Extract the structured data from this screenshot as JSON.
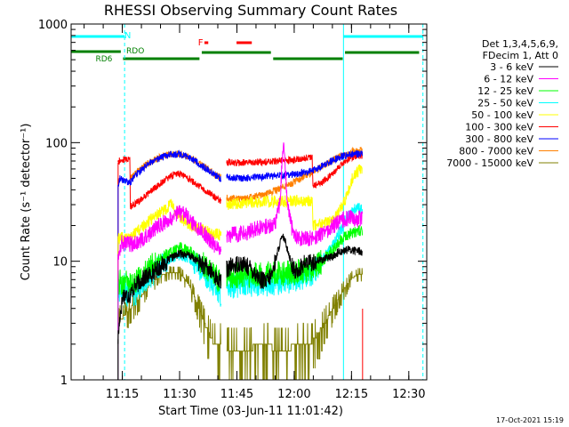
{
  "chart_data": {
    "type": "line",
    "title": "RHESSI Observing Summary Count Rates",
    "xlabel": "Start Time (03-Jun-11 11:01:42)",
    "ylabel": "Count Rate (s⁻¹ detector⁻¹)",
    "y_scale": "log",
    "ylim": [
      1,
      1000
    ],
    "xlim_minutes_from_start": [
      -0.1,
      93
    ],
    "y_ticks": [
      1,
      10,
      100,
      1000
    ],
    "y_tick_labels": [
      "1",
      "10",
      "100",
      "1000"
    ],
    "x_tick_labels": [
      "11:15",
      "11:30",
      "11:45",
      "12:00",
      "12:15",
      "12:30"
    ],
    "x_tick_minutes": [
      13.3,
      28.3,
      43.3,
      58.3,
      73.3,
      88.3
    ],
    "timestamp": "17-Oct-2021 15:19",
    "legend_header": [
      "Det 1,3,4,5,6,9,",
      "FDecim 1, Att 0"
    ],
    "legend_position": "right",
    "data_start": 12.2,
    "data_end": 76.2,
    "gap_start": 39.2,
    "gap_end": 40.6,
    "series": [
      {
        "name": "3 - 6 keV",
        "color": "#000000",
        "points": [
          [
            12.2,
            2.2
          ],
          [
            12.7,
            3.5
          ],
          [
            13.5,
            5.2
          ],
          [
            15.4,
            5.2
          ],
          [
            16.0,
            5.8
          ],
          [
            18.0,
            6.8
          ],
          [
            22.0,
            8.4
          ],
          [
            26.0,
            10.6
          ],
          [
            28.5,
            11.7
          ],
          [
            31.0,
            11.1
          ],
          [
            34.0,
            9.5
          ],
          [
            36.5,
            8.2
          ],
          [
            38.4,
            6.9
          ],
          [
            39.3,
            6.6
          ],
          [
            40.6,
            8.6
          ],
          [
            44.0,
            9.7
          ],
          [
            47.0,
            8.7
          ],
          [
            49.5,
            7.0
          ],
          [
            51.0,
            6.6
          ],
          [
            52.5,
            7.8
          ],
          [
            53.5,
            10.6
          ],
          [
            54.8,
            15.0
          ],
          [
            55.5,
            16.0
          ],
          [
            56.5,
            13.0
          ],
          [
            57.5,
            9.7
          ],
          [
            58.5,
            8.0
          ],
          [
            61.0,
            9.6
          ],
          [
            63.0,
            9.8
          ],
          [
            65.5,
            10.3
          ],
          [
            68.5,
            11.0
          ],
          [
            70.0,
            12.0
          ],
          [
            72.5,
            12.5
          ],
          [
            75.0,
            12.3
          ],
          [
            76.2,
            12.0
          ]
        ]
      },
      {
        "name": "6 - 12 keV",
        "color": "#ff00ff",
        "points": [
          [
            12.2,
            11.5
          ],
          [
            13.0,
            14.2
          ],
          [
            15.4,
            14.0
          ],
          [
            16.5,
            14.0
          ],
          [
            19.0,
            15.5
          ],
          [
            22.0,
            19.0
          ],
          [
            25.0,
            22.0
          ],
          [
            27.5,
            25.0
          ],
          [
            29.0,
            26.0
          ],
          [
            31.0,
            22.5
          ],
          [
            34.0,
            18.0
          ],
          [
            36.5,
            15.0
          ],
          [
            38.5,
            12.5
          ],
          [
            39.3,
            12.0
          ],
          [
            40.6,
            16.5
          ],
          [
            43.5,
            17.0
          ],
          [
            46.0,
            17.5
          ],
          [
            48.0,
            18.5
          ],
          [
            50.0,
            19.5
          ],
          [
            52.0,
            20.0
          ],
          [
            53.5,
            22.0
          ],
          [
            54.5,
            30.0
          ],
          [
            55.5,
            100.0
          ],
          [
            56.5,
            33.0
          ],
          [
            57.5,
            20.0
          ],
          [
            58.5,
            16.0
          ],
          [
            60.0,
            15.5
          ],
          [
            62.0,
            15.5
          ],
          [
            64.0,
            16.0
          ],
          [
            66.5,
            17.5
          ],
          [
            68.5,
            20.0
          ],
          [
            70.0,
            21.5
          ],
          [
            72.0,
            23.0
          ],
          [
            74.5,
            23.0
          ],
          [
            76.2,
            22.5
          ]
        ]
      },
      {
        "name": "12 - 25 keV",
        "color": "#00ff00",
        "points": [
          [
            12.2,
            6.5
          ],
          [
            13.0,
            6.7
          ],
          [
            15.4,
            6.4
          ],
          [
            16.5,
            6.5
          ],
          [
            19.0,
            8.0
          ],
          [
            22.0,
            9.8
          ],
          [
            25.0,
            11.5
          ],
          [
            28.5,
            13.0
          ],
          [
            31.0,
            12.0
          ],
          [
            34.0,
            9.8
          ],
          [
            36.5,
            8.0
          ],
          [
            38.5,
            7.0
          ],
          [
            39.3,
            6.6
          ],
          [
            40.6,
            7.4
          ],
          [
            44.0,
            7.6
          ],
          [
            48.0,
            7.7
          ],
          [
            52.0,
            7.8
          ],
          [
            55.0,
            7.9
          ],
          [
            58.0,
            8.0
          ],
          [
            61.0,
            8.3
          ],
          [
            63.0,
            8.8
          ],
          [
            65.5,
            10.0
          ],
          [
            68.5,
            12.5
          ],
          [
            70.0,
            14.5
          ],
          [
            72.0,
            16.5
          ],
          [
            74.5,
            18.0
          ],
          [
            76.2,
            18.0
          ]
        ]
      },
      {
        "name": "25 - 50 keV",
        "color": "#00ffff",
        "points": [
          [
            12.2,
            5.6
          ],
          [
            13.0,
            5.6
          ],
          [
            15.4,
            5.2
          ],
          [
            16.5,
            5.3
          ],
          [
            19.0,
            6.5
          ],
          [
            22.0,
            8.4
          ],
          [
            25.0,
            10.0
          ],
          [
            28.5,
            11.3
          ],
          [
            31.0,
            10.5
          ],
          [
            34.0,
            8.5
          ],
          [
            36.5,
            6.8
          ],
          [
            38.5,
            5.5
          ],
          [
            39.3,
            5.2
          ],
          [
            40.6,
            6.2
          ],
          [
            44.0,
            6.3
          ],
          [
            48.0,
            6.4
          ],
          [
            52.0,
            6.5
          ],
          [
            55.0,
            6.7
          ],
          [
            58.0,
            7.0
          ],
          [
            61.0,
            7.5
          ],
          [
            63.0,
            8.0
          ],
          [
            65.5,
            10.0
          ],
          [
            68.5,
            13.5
          ],
          [
            70.0,
            17.0
          ],
          [
            72.0,
            23.0
          ],
          [
            74.5,
            28.0
          ],
          [
            76.2,
            28.0
          ]
        ]
      },
      {
        "name": "50 - 100 keV",
        "color": "#ffff00",
        "points": [
          [
            12.2,
            15.5
          ],
          [
            13.0,
            15.8
          ],
          [
            15.4,
            15.5
          ],
          [
            16.0,
            16.5
          ],
          [
            19.0,
            20.0
          ],
          [
            22.0,
            24.5
          ],
          [
            24.5,
            27.0
          ],
          [
            26.0,
            30.5
          ],
          [
            27.0,
            27.5
          ],
          [
            29.0,
            22.5
          ],
          [
            32.0,
            19.5
          ],
          [
            36.0,
            17.5
          ],
          [
            38.5,
            16.8
          ],
          [
            39.3,
            16.5
          ],
          [
            40.6,
            30.0
          ],
          [
            44.0,
            31.0
          ],
          [
            48.0,
            31.5
          ],
          [
            52.0,
            32.0
          ],
          [
            56.0,
            32.0
          ],
          [
            60.0,
            32.5
          ],
          [
            63.0,
            32.5
          ],
          [
            63.2,
            20.0
          ],
          [
            65.5,
            20.5
          ],
          [
            68.5,
            22.0
          ],
          [
            70.0,
            26.0
          ],
          [
            72.0,
            35.0
          ],
          [
            73.5,
            50.0
          ],
          [
            75.5,
            60.0
          ],
          [
            76.2,
            58.0
          ]
        ]
      },
      {
        "name": "100 - 300 keV",
        "color": "#ff0000",
        "points": [
          [
            12.2,
            68.0
          ],
          [
            12.6,
            71.0
          ],
          [
            13.5,
            72.0
          ],
          [
            15.3,
            72.5
          ],
          [
            15.4,
            29.0
          ],
          [
            17.0,
            31.0
          ],
          [
            20.0,
            37.0
          ],
          [
            23.0,
            45.0
          ],
          [
            26.0,
            52.0
          ],
          [
            28.0,
            55.0
          ],
          [
            30.0,
            51.0
          ],
          [
            33.0,
            44.0
          ],
          [
            36.0,
            37.5
          ],
          [
            38.5,
            33.0
          ],
          [
            39.3,
            32.0
          ],
          [
            40.6,
            68.0
          ],
          [
            44.0,
            67.5
          ],
          [
            48.0,
            68.5
          ],
          [
            52.0,
            69.0
          ],
          [
            56.0,
            70.5
          ],
          [
            58.5,
            72.0
          ],
          [
            61.0,
            74.0
          ],
          [
            63.0,
            76.0
          ],
          [
            63.2,
            43.0
          ],
          [
            65.5,
            46.0
          ],
          [
            68.5,
            55.0
          ],
          [
            70.0,
            62.0
          ],
          [
            72.0,
            72.0
          ],
          [
            74.5,
            78.0
          ],
          [
            76.2,
            78.0
          ]
        ]
      },
      {
        "name": "300 - 800 keV",
        "color": "#0000ff",
        "points": [
          [
            12.2,
            44.0
          ],
          [
            12.7,
            50.0
          ],
          [
            14.0,
            47.0
          ],
          [
            15.4,
            46.0
          ],
          [
            17.0,
            54.0
          ],
          [
            20.0,
            66.0
          ],
          [
            23.0,
            74.0
          ],
          [
            26.0,
            79.0
          ],
          [
            28.0,
            80.0
          ],
          [
            30.0,
            77.0
          ],
          [
            33.0,
            68.0
          ],
          [
            36.0,
            58.0
          ],
          [
            38.5,
            51.0
          ],
          [
            39.3,
            49.0
          ],
          [
            40.6,
            51.0
          ],
          [
            44.0,
            50.0
          ],
          [
            48.0,
            51.0
          ],
          [
            52.0,
            52.0
          ],
          [
            55.0,
            53.0
          ],
          [
            58.0,
            54.0
          ],
          [
            61.0,
            56.0
          ],
          [
            63.0,
            58.0
          ],
          [
            65.0,
            62.0
          ],
          [
            68.0,
            70.0
          ],
          [
            71.0,
            77.0
          ],
          [
            73.5,
            80.0
          ],
          [
            76.2,
            80.0
          ]
        ]
      },
      {
        "name": "800 - 7000 keV",
        "color": "#ff8000",
        "points": [
          [
            15.4,
            50.0
          ],
          [
            17.0,
            56.0
          ],
          [
            20.0,
            67.0
          ],
          [
            23.0,
            75.0
          ],
          [
            26.0,
            80.0
          ],
          [
            28.0,
            81.0
          ],
          [
            30.0,
            78.0
          ],
          [
            33.0,
            69.0
          ],
          [
            36.0,
            59.0
          ],
          [
            38.5,
            52.0
          ],
          [
            39.3,
            50.0
          ],
          [
            40.6,
            34.0
          ],
          [
            44.0,
            33.5
          ],
          [
            48.0,
            35.0
          ],
          [
            52.0,
            38.0
          ],
          [
            56.0,
            43.0
          ],
          [
            60.0,
            50.0
          ],
          [
            63.0,
            56.0
          ],
          [
            66.0,
            64.0
          ],
          [
            69.0,
            73.0
          ],
          [
            72.0,
            81.0
          ],
          [
            74.5,
            86.0
          ],
          [
            76.2,
            86.0
          ]
        ]
      },
      {
        "name": "7000 - 15000 keV",
        "color": "#808000",
        "points": [
          [
            12.2,
            3.0
          ],
          [
            13.0,
            3.2
          ],
          [
            15.0,
            3.9
          ],
          [
            17.0,
            4.5
          ],
          [
            20.0,
            6.0
          ],
          [
            23.0,
            7.5
          ],
          [
            26.0,
            8.1
          ],
          [
            28.5,
            7.9
          ],
          [
            31.0,
            6.2
          ],
          [
            33.0,
            4.3
          ],
          [
            35.0,
            2.9
          ],
          [
            37.0,
            2.1
          ],
          [
            40.6,
            1.8
          ],
          [
            45.0,
            1.85
          ],
          [
            50.0,
            1.9
          ],
          [
            55.0,
            1.85
          ],
          [
            60.0,
            1.9
          ],
          [
            63.0,
            2.1
          ],
          [
            65.0,
            2.6
          ],
          [
            67.0,
            3.3
          ],
          [
            69.0,
            4.3
          ],
          [
            71.0,
            5.6
          ],
          [
            73.0,
            7.0
          ],
          [
            75.0,
            7.8
          ],
          [
            76.2,
            7.8
          ]
        ]
      }
    ],
    "state_bars": {
      "night": [
        [
          -0.1,
          13.9
        ],
        [
          71.2,
          92.0
        ]
      ],
      "saa": [],
      "flare": [
        [
          34.8,
          35.8
        ],
        [
          43.2,
          47.2
        ]
      ],
      "decimation": [
        [
          -0.1,
          12.9
        ],
        [
          13.5,
          33.5
        ],
        [
          34.1,
          52.2
        ],
        [
          52.8,
          71.0
        ],
        [
          71.6,
          91.0
        ]
      ]
    },
    "state_labels": {
      "night": "N",
      "flare": "F",
      "decimation": "RDO",
      "decimation_alt": "RD6"
    },
    "markers": {
      "night_start": [
        -0.1,
        71.2
      ],
      "night_end": [
        13.9,
        92.0
      ],
      "dataset_end": 76.2
    },
    "colors": {
      "night": "#00ffff",
      "saa": "#ff00ff",
      "flare": "#ff0000",
      "decimation": "#008000",
      "axes": "#000000"
    }
  }
}
